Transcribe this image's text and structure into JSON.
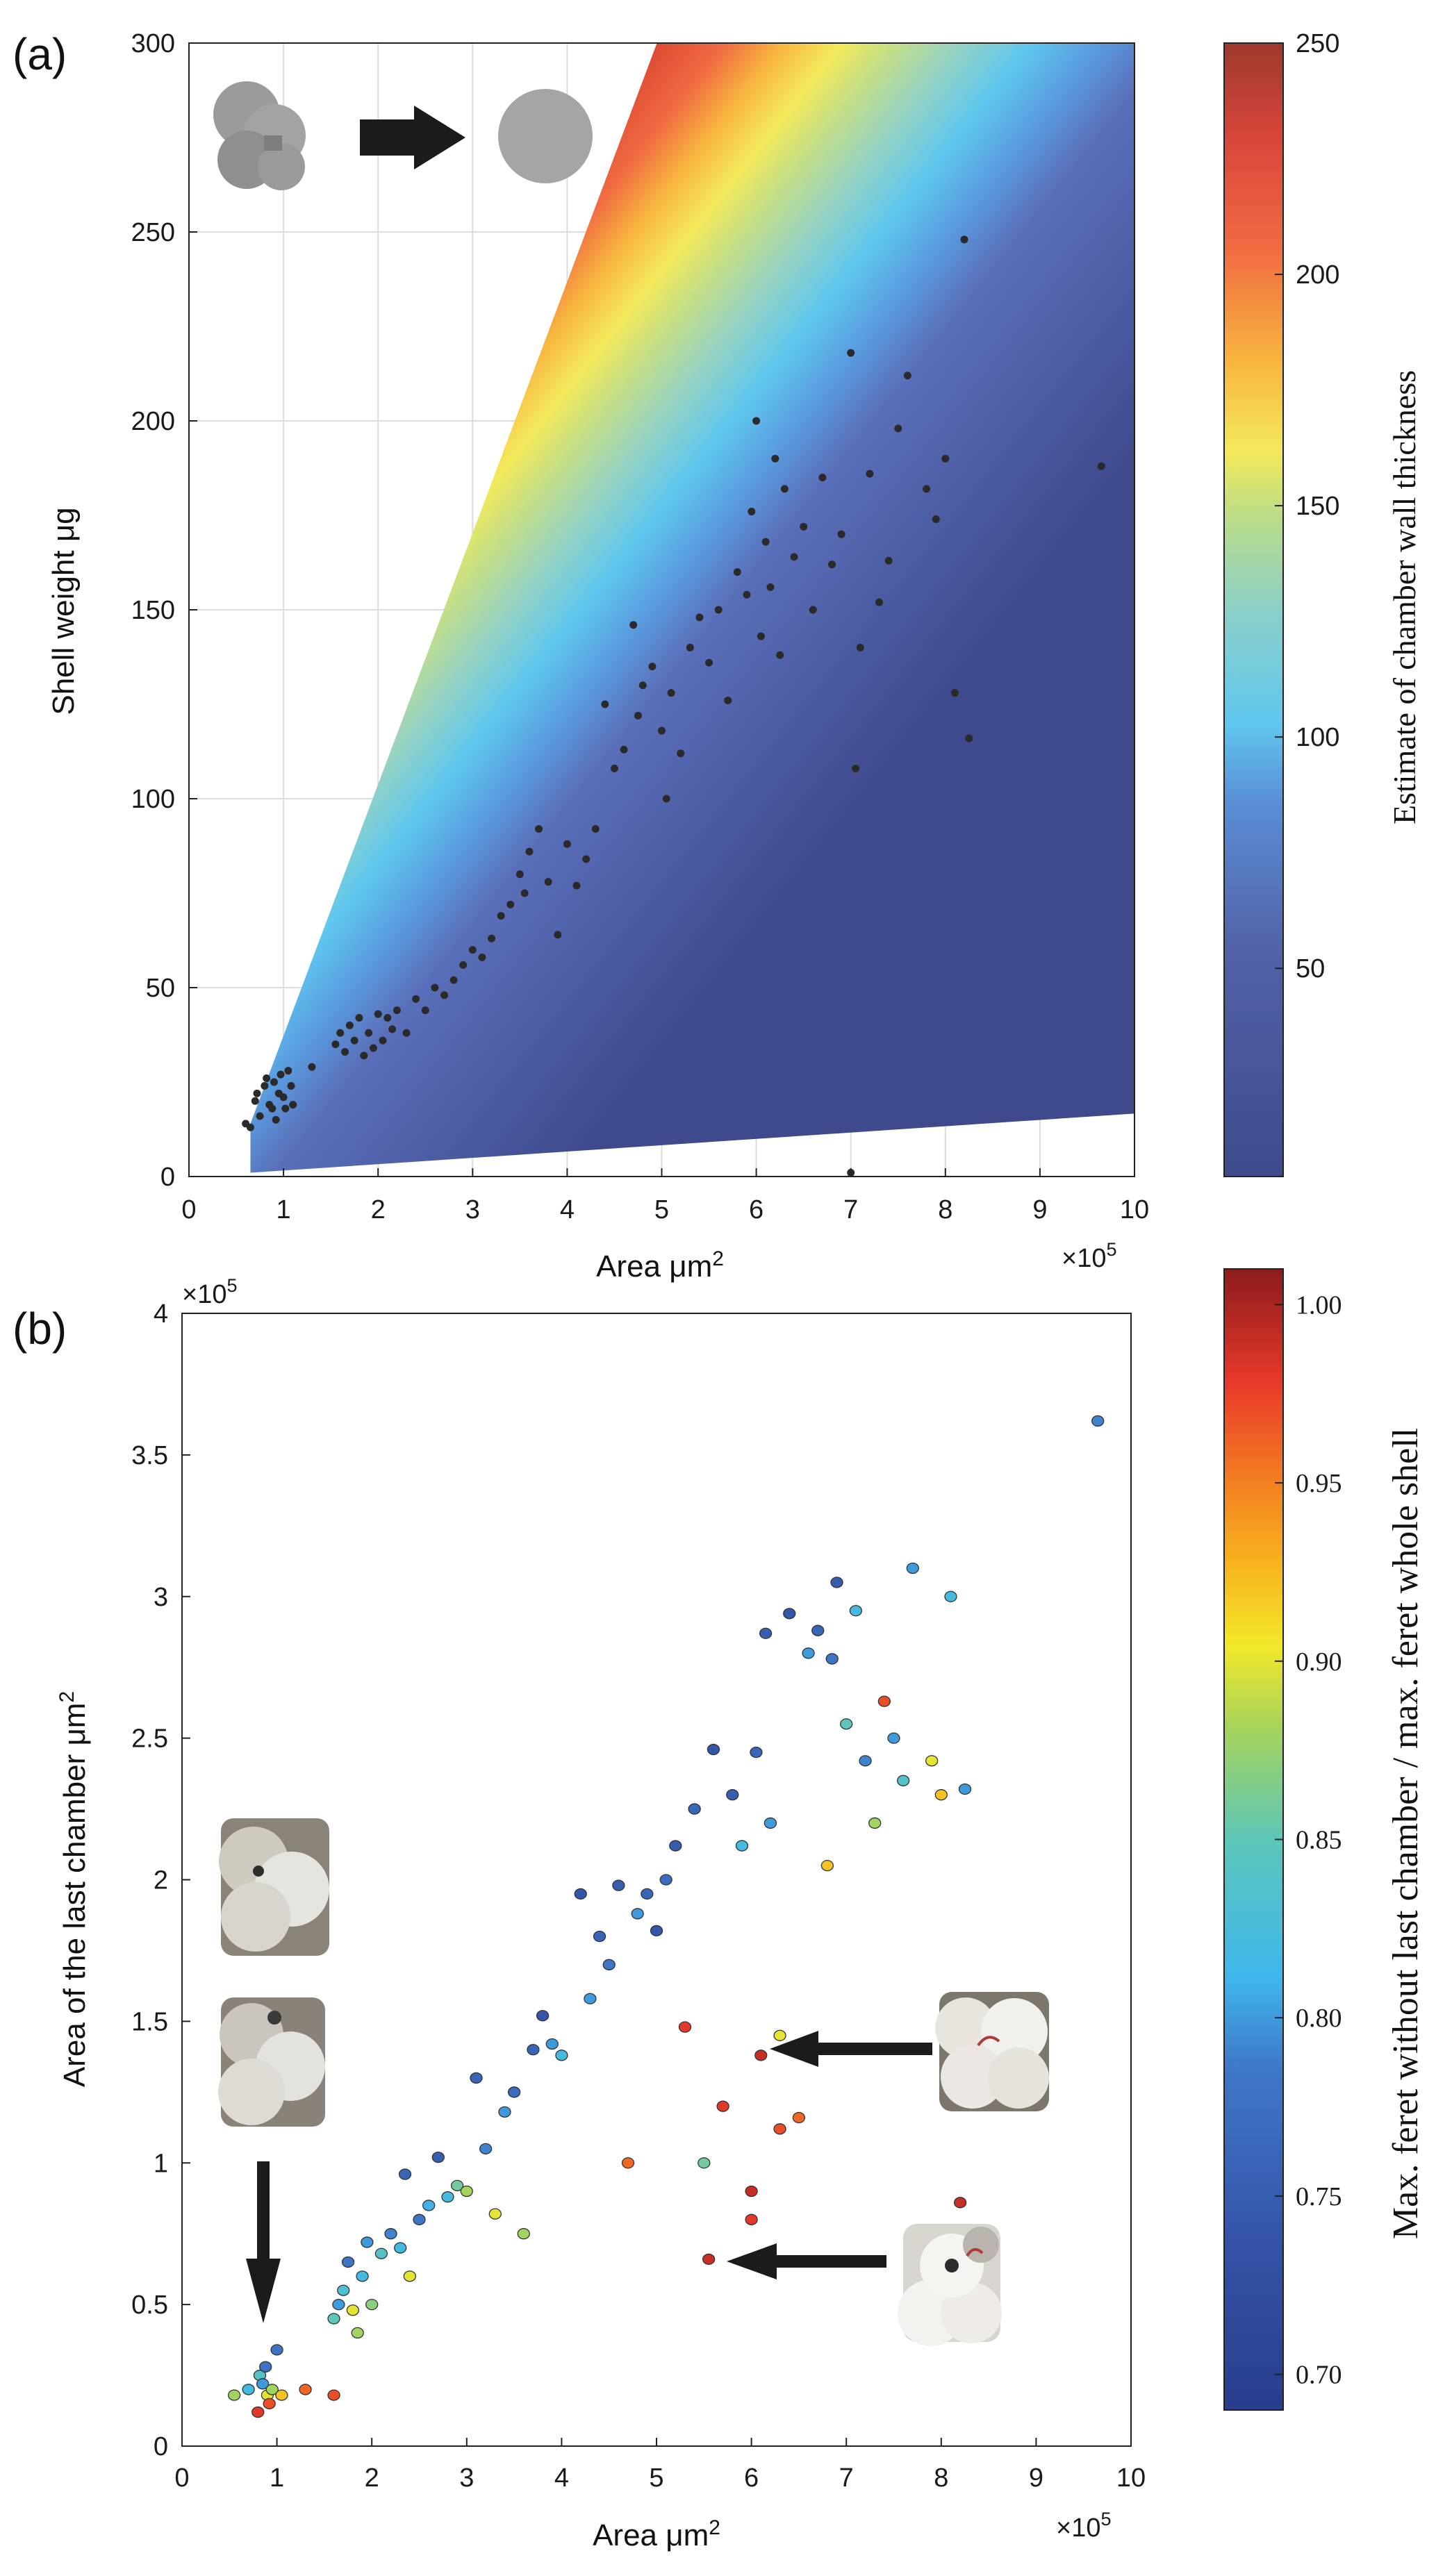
{
  "panels": {
    "a": {
      "label": "(a)"
    },
    "b": {
      "label": "(b)"
    }
  },
  "chart_data": [
    {
      "id": "a",
      "type": "scatter",
      "xlabel": "Area μm",
      "xlabel_sup": "2",
      "ylabel": "Shell weight μg",
      "x_multiplier": "×10",
      "x_multiplier_sup": "5",
      "xlim": [
        0,
        10
      ],
      "ylim": [
        0,
        300
      ],
      "x_ticks": [
        "0",
        "1",
        "2",
        "3",
        "4",
        "5",
        "6",
        "7",
        "8",
        "9",
        "10"
      ],
      "y_ticks": [
        "0",
        "50",
        "100",
        "150",
        "200",
        "250",
        "300"
      ],
      "grid": true,
      "background": "filled wedge colour map of estimated chamber wall thickness (upper edge: 300 μg at 5.1e5 μm2, lower edge: 17 μg at 10e5 μm2)",
      "colorbar": {
        "label": "Estimate of chamber wall thickness",
        "ticks": [
          "50",
          "100",
          "150",
          "200",
          "250"
        ],
        "range": [
          5,
          250
        ],
        "colormap": "parula-jet"
      },
      "inset_icons": [
        "multi-chamber-shell-silhouette",
        "arrow-right-icon",
        "equivalent-circle"
      ],
      "marker_color": "#2a2a2a",
      "points": [
        [
          0.6,
          14
        ],
        [
          0.65,
          13
        ],
        [
          0.7,
          20
        ],
        [
          0.72,
          22
        ],
        [
          0.75,
          16
        ],
        [
          0.8,
          24
        ],
        [
          0.82,
          26
        ],
        [
          0.85,
          19
        ],
        [
          0.88,
          18
        ],
        [
          0.9,
          25
        ],
        [
          0.92,
          15
        ],
        [
          0.95,
          22
        ],
        [
          0.97,
          27
        ],
        [
          1.0,
          21
        ],
        [
          1.02,
          18
        ],
        [
          1.05,
          28
        ],
        [
          1.08,
          24
        ],
        [
          1.1,
          19
        ],
        [
          1.3,
          29
        ],
        [
          1.55,
          35
        ],
        [
          1.6,
          38
        ],
        [
          1.65,
          33
        ],
        [
          1.7,
          40
        ],
        [
          1.75,
          36
        ],
        [
          1.8,
          42
        ],
        [
          1.85,
          32
        ],
        [
          1.9,
          38
        ],
        [
          1.95,
          34
        ],
        [
          2.0,
          43
        ],
        [
          2.05,
          36
        ],
        [
          2.1,
          42
        ],
        [
          2.15,
          39
        ],
        [
          2.2,
          44
        ],
        [
          2.3,
          38
        ],
        [
          2.4,
          47
        ],
        [
          2.5,
          44
        ],
        [
          2.6,
          50
        ],
        [
          2.7,
          48
        ],
        [
          2.8,
          52
        ],
        [
          2.9,
          56
        ],
        [
          3.0,
          60
        ],
        [
          3.1,
          58
        ],
        [
          3.2,
          63
        ],
        [
          3.3,
          69
        ],
        [
          3.4,
          72
        ],
        [
          3.5,
          80
        ],
        [
          3.55,
          75
        ],
        [
          3.6,
          86
        ],
        [
          3.7,
          92
        ],
        [
          3.8,
          78
        ],
        [
          3.9,
          64
        ],
        [
          4.0,
          88
        ],
        [
          4.1,
          77
        ],
        [
          4.2,
          84
        ],
        [
          4.3,
          92
        ],
        [
          4.4,
          125
        ],
        [
          4.5,
          108
        ],
        [
          4.6,
          113
        ],
        [
          4.7,
          146
        ],
        [
          4.75,
          122
        ],
        [
          4.8,
          130
        ],
        [
          4.9,
          135
        ],
        [
          5.0,
          118
        ],
        [
          5.05,
          100
        ],
        [
          5.1,
          128
        ],
        [
          5.2,
          112
        ],
        [
          5.3,
          140
        ],
        [
          5.4,
          148
        ],
        [
          5.5,
          136
        ],
        [
          5.6,
          150
        ],
        [
          5.7,
          126
        ],
        [
          5.8,
          160
        ],
        [
          5.9,
          154
        ],
        [
          5.95,
          176
        ],
        [
          6.0,
          200
        ],
        [
          6.05,
          143
        ],
        [
          6.1,
          168
        ],
        [
          6.15,
          156
        ],
        [
          6.2,
          190
        ],
        [
          6.25,
          138
        ],
        [
          6.3,
          182
        ],
        [
          6.4,
          164
        ],
        [
          6.5,
          172
        ],
        [
          6.6,
          150
        ],
        [
          6.7,
          185
        ],
        [
          6.8,
          162
        ],
        [
          6.9,
          170
        ],
        [
          7.0,
          218
        ],
        [
          7.05,
          108
        ],
        [
          7.1,
          140
        ],
        [
          7.2,
          186
        ],
        [
          7.3,
          152
        ],
        [
          7.4,
          163
        ],
        [
          7.5,
          198
        ],
        [
          7.6,
          212
        ],
        [
          7.8,
          182
        ],
        [
          7.9,
          174
        ],
        [
          8.0,
          190
        ],
        [
          8.1,
          128
        ],
        [
          8.2,
          248
        ],
        [
          8.25,
          116
        ],
        [
          9.65,
          188
        ],
        [
          7.0,
          1
        ]
      ]
    },
    {
      "id": "b",
      "type": "scatter",
      "xlabel": "Area μm",
      "xlabel_sup": "2",
      "ylabel": "Area of the last chamber μm",
      "ylabel_sup": "2",
      "x_multiplier": "×10",
      "x_multiplier_sup": "5",
      "y_multiplier": "×10",
      "y_multiplier_sup": "5",
      "xlim": [
        0,
        10
      ],
      "ylim": [
        0,
        4
      ],
      "x_ticks": [
        "0",
        "1",
        "2",
        "3",
        "4",
        "5",
        "6",
        "7",
        "8",
        "9",
        "10"
      ],
      "y_ticks": [
        "0",
        "0.5",
        "1",
        "1.5",
        "2",
        "2.5",
        "3",
        "3.5",
        "4"
      ],
      "grid": false,
      "colorbar": {
        "label": "Max. feret without last chamber / max. feret whole shell",
        "ticks": [
          "0.70",
          "0.75",
          "0.80",
          "0.85",
          "0.90",
          "0.95",
          "1.00"
        ],
        "range": [
          0.69,
          1.01
        ],
        "colormap": "parula-jet"
      },
      "inset_icons": [
        "shell-photo-top-left",
        "shell-photo-mid-left",
        "arrow-down-icon",
        "shell-photo-right-upper",
        "arrow-left-icon",
        "shell-photo-right-lower",
        "arrow-left-icon"
      ],
      "points": [
        [
          0.55,
          0.18,
          0.88
        ],
        [
          0.7,
          0.2,
          0.82
        ],
        [
          0.8,
          0.12,
          0.98
        ],
        [
          0.82,
          0.25,
          0.84
        ],
        [
          0.85,
          0.22,
          0.8
        ],
        [
          0.88,
          0.28,
          0.78
        ],
        [
          0.9,
          0.18,
          0.9
        ],
        [
          0.92,
          0.15,
          0.97
        ],
        [
          0.95,
          0.2,
          0.88
        ],
        [
          1.0,
          0.34,
          0.78
        ],
        [
          1.05,
          0.18,
          0.92
        ],
        [
          1.3,
          0.2,
          0.96
        ],
        [
          1.6,
          0.18,
          0.97
        ],
        [
          1.6,
          0.45,
          0.85
        ],
        [
          1.65,
          0.5,
          0.8
        ],
        [
          1.7,
          0.55,
          0.83
        ],
        [
          1.75,
          0.65,
          0.78
        ],
        [
          1.8,
          0.48,
          0.9
        ],
        [
          1.85,
          0.4,
          0.88
        ],
        [
          1.9,
          0.6,
          0.82
        ],
        [
          1.95,
          0.72,
          0.8
        ],
        [
          2.0,
          0.5,
          0.87
        ],
        [
          2.1,
          0.68,
          0.84
        ],
        [
          2.2,
          0.75,
          0.79
        ],
        [
          2.3,
          0.7,
          0.82
        ],
        [
          2.35,
          0.96,
          0.76
        ],
        [
          2.4,
          0.6,
          0.9
        ],
        [
          2.5,
          0.8,
          0.78
        ],
        [
          2.6,
          0.85,
          0.81
        ],
        [
          2.7,
          1.02,
          0.75
        ],
        [
          2.8,
          0.88,
          0.82
        ],
        [
          2.9,
          0.92,
          0.86
        ],
        [
          3.0,
          0.9,
          0.88
        ],
        [
          3.1,
          1.3,
          0.76
        ],
        [
          3.2,
          1.05,
          0.79
        ],
        [
          3.3,
          0.82,
          0.9
        ],
        [
          3.4,
          1.18,
          0.8
        ],
        [
          3.5,
          1.25,
          0.77
        ],
        [
          3.6,
          0.75,
          0.88
        ],
        [
          3.7,
          1.4,
          0.76
        ],
        [
          3.8,
          1.52,
          0.74
        ],
        [
          3.9,
          1.42,
          0.8
        ],
        [
          4.0,
          1.38,
          0.82
        ],
        [
          4.2,
          1.95,
          0.74
        ],
        [
          4.3,
          1.58,
          0.8
        ],
        [
          4.4,
          1.8,
          0.76
        ],
        [
          4.5,
          1.7,
          0.78
        ],
        [
          4.6,
          1.98,
          0.75
        ],
        [
          4.7,
          1.0,
          0.96
        ],
        [
          4.8,
          1.88,
          0.8
        ],
        [
          4.9,
          1.95,
          0.76
        ],
        [
          5.0,
          1.82,
          0.74
        ],
        [
          5.1,
          2.0,
          0.77
        ],
        [
          5.2,
          2.12,
          0.75
        ],
        [
          5.3,
          1.48,
          0.98
        ],
        [
          5.4,
          2.25,
          0.76
        ],
        [
          5.5,
          1.0,
          0.86
        ],
        [
          5.6,
          2.46,
          0.74
        ],
        [
          5.7,
          1.2,
          0.98
        ],
        [
          5.8,
          2.3,
          0.75
        ],
        [
          5.9,
          2.12,
          0.82
        ],
        [
          6.0,
          0.9,
          0.99
        ],
        [
          6.05,
          2.45,
          0.76
        ],
        [
          6.1,
          1.38,
          0.99
        ],
        [
          6.15,
          2.87,
          0.75
        ],
        [
          6.2,
          2.2,
          0.8
        ],
        [
          6.3,
          1.45,
          0.9
        ],
        [
          6.4,
          2.94,
          0.74
        ],
        [
          6.5,
          1.16,
          0.96
        ],
        [
          6.6,
          2.8,
          0.8
        ],
        [
          6.7,
          2.88,
          0.76
        ],
        [
          6.8,
          2.05,
          0.92
        ],
        [
          6.85,
          2.78,
          0.78
        ],
        [
          6.9,
          3.05,
          0.75
        ],
        [
          7.0,
          2.55,
          0.85
        ],
        [
          7.1,
          2.95,
          0.82
        ],
        [
          7.2,
          2.42,
          0.79
        ],
        [
          7.3,
          2.2,
          0.88
        ],
        [
          7.4,
          2.63,
          0.97
        ],
        [
          7.5,
          2.5,
          0.8
        ],
        [
          7.6,
          2.35,
          0.84
        ],
        [
          7.7,
          3.1,
          0.8
        ],
        [
          7.9,
          2.42,
          0.9
        ],
        [
          8.0,
          2.3,
          0.92
        ],
        [
          8.1,
          3.0,
          0.82
        ],
        [
          8.2,
          0.86,
          0.99
        ],
        [
          8.25,
          2.32,
          0.8
        ],
        [
          9.65,
          3.62,
          0.79
        ],
        [
          5.55,
          0.66,
          0.99
        ],
        [
          6.0,
          0.8,
          0.98
        ],
        [
          6.3,
          1.12,
          0.97
        ]
      ]
    }
  ]
}
